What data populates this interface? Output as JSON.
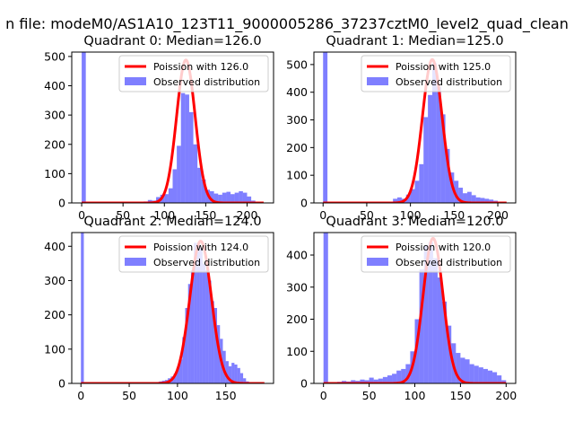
{
  "figure": {
    "suptitle": "n file: modeM0/AS1A10_123T11_9000005286_37237cztM0_level2_quad_clean"
  },
  "colors": {
    "fit_line": "#ff0000",
    "histogram": "#0000ff",
    "axis": "#000000",
    "legend_border": "#cccccc"
  },
  "chart_data": [
    {
      "type": "bar",
      "title": "Quadrant 0: Median=126.0",
      "legend": [
        "Poission with 126.0",
        "Observed distribution"
      ],
      "legend_position": "top-right",
      "grid": false,
      "xlim": [
        -12,
        232
      ],
      "ylim": [
        0,
        515
      ],
      "xticks": [
        0,
        50,
        100,
        150,
        200
      ],
      "yticks": [
        0,
        100,
        200,
        300,
        400,
        500
      ],
      "histogram": {
        "bin_width": 5,
        "x": [
          0,
          75,
          80,
          85,
          90,
          95,
          100,
          105,
          110,
          115,
          120,
          125,
          130,
          135,
          140,
          145,
          150,
          155,
          160,
          165,
          170,
          175,
          180,
          185,
          190,
          195,
          200,
          205,
          210
        ],
        "values": [
          515,
          5,
          10,
          8,
          20,
          28,
          30,
          50,
          115,
          195,
          375,
          370,
          310,
          200,
          120,
          80,
          45,
          40,
          32,
          28,
          35,
          38,
          30,
          35,
          40,
          35,
          22,
          8,
          3
        ]
      },
      "fit": {
        "mean": 126,
        "peak": 488,
        "x_range": [
          0,
          220
        ]
      }
    },
    {
      "type": "bar",
      "title": "Quadrant 1: Median=125.0",
      "legend": [
        "Poission with 125.0",
        "Observed distribution"
      ],
      "legend_position": "top-right",
      "grid": false,
      "xlim": [
        -10.5,
        220.5
      ],
      "ylim": [
        0,
        545
      ],
      "xticks": [
        0,
        50,
        100,
        150,
        200
      ],
      "yticks": [
        0,
        100,
        200,
        300,
        400,
        500
      ],
      "histogram": {
        "bin_width": 5,
        "x": [
          0,
          80,
          85,
          90,
          95,
          100,
          105,
          110,
          115,
          120,
          125,
          130,
          135,
          140,
          145,
          150,
          155,
          160,
          165,
          170,
          175,
          180,
          185,
          190,
          195
        ],
        "values": [
          545,
          15,
          20,
          15,
          30,
          50,
          80,
          140,
          310,
          390,
          505,
          420,
          320,
          195,
          110,
          80,
          55,
          35,
          40,
          28,
          20,
          18,
          15,
          12,
          8
        ]
      },
      "fit": {
        "mean": 125,
        "peak": 518,
        "x_range": [
          0,
          210
        ]
      }
    },
    {
      "type": "bar",
      "title": "Quadrant 2: Median=124.0",
      "legend": [
        "Poission with 124.0",
        "Observed distribution"
      ],
      "legend_position": "top-right",
      "grid": false,
      "xlim": [
        -9.5,
        199.5
      ],
      "ylim": [
        0,
        440
      ],
      "xticks": [
        0,
        50,
        100,
        150
      ],
      "yticks": [
        0,
        100,
        200,
        300,
        400
      ],
      "histogram": {
        "bin_width": 3,
        "x": [
          0,
          78,
          81,
          84,
          87,
          90,
          93,
          96,
          99,
          102,
          105,
          108,
          111,
          114,
          117,
          120,
          123,
          126,
          129,
          132,
          135,
          138,
          141,
          144,
          147,
          150,
          153,
          156,
          159,
          162,
          165,
          168,
          171
        ],
        "values": [
          440,
          4,
          6,
          8,
          10,
          15,
          20,
          28,
          45,
          70,
          135,
          220,
          290,
          330,
          410,
          405,
          395,
          350,
          330,
          300,
          240,
          220,
          170,
          130,
          95,
          65,
          50,
          60,
          55,
          45,
          30,
          15,
          6
        ]
      },
      "fit": {
        "mean": 124,
        "peak": 415,
        "x_range": [
          0,
          190
        ]
      }
    },
    {
      "type": "bar",
      "title": "Quadrant 3: Median=120.0",
      "legend": [
        "Poission with 120.0",
        "Observed distribution"
      ],
      "legend_position": "top-right",
      "grid": false,
      "xlim": [
        -10.5,
        210.5
      ],
      "ylim": [
        0,
        470
      ],
      "xticks": [
        0,
        50,
        100,
        150,
        200
      ],
      "yticks": [
        0,
        100,
        200,
        300,
        400
      ],
      "histogram": {
        "bin_width": 5,
        "x": [
          0,
          5,
          10,
          15,
          20,
          25,
          30,
          35,
          40,
          45,
          50,
          55,
          60,
          65,
          70,
          75,
          80,
          85,
          90,
          95,
          100,
          105,
          110,
          115,
          120,
          125,
          130,
          135,
          140,
          145,
          150,
          155,
          160,
          165,
          170,
          175,
          180,
          185,
          190,
          195
        ],
        "values": [
          470,
          3,
          4,
          5,
          8,
          6,
          10,
          8,
          12,
          10,
          18,
          12,
          15,
          20,
          25,
          30,
          40,
          45,
          60,
          100,
          200,
          355,
          430,
          440,
          390,
          330,
          255,
          180,
          125,
          95,
          80,
          75,
          60,
          55,
          50,
          45,
          40,
          35,
          25,
          10
        ]
      },
      "fit": {
        "mean": 120,
        "peak": 452,
        "x_range": [
          0,
          200
        ]
      }
    }
  ]
}
